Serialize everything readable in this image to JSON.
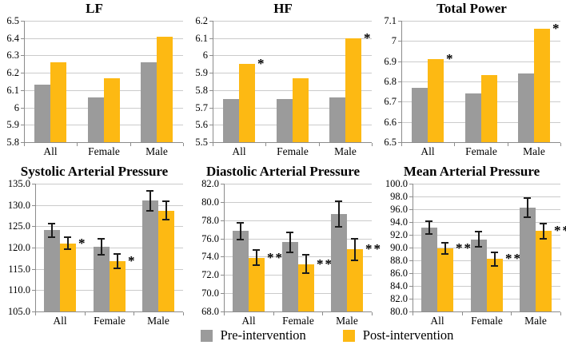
{
  "figure": {
    "background": "#ffffff"
  },
  "colors": {
    "pre_bar": "#9b9b9b",
    "post_bar": "#fdb913",
    "gridline": "#cbcbcb",
    "axis": "#8c8c8c",
    "error_bar": "#1c1c1c",
    "text": "#000000"
  },
  "legend": {
    "items": [
      {
        "label": "Pre-intervention",
        "color": "#9b9b9b"
      },
      {
        "label": "Post-intervention",
        "color": "#fdb913"
      }
    ]
  },
  "chart_data": [
    {
      "type": "bar",
      "title": "LF",
      "categories": [
        "All",
        "Female",
        "Male"
      ],
      "yticks": [
        "5.8",
        "5.9",
        "6",
        "6.1",
        "6.2",
        "6.3",
        "6.4",
        "6.5"
      ],
      "ylim": [
        5.8,
        6.5
      ],
      "series": [
        {
          "name": "Pre-intervention",
          "values": [
            6.13,
            6.06,
            6.26
          ]
        },
        {
          "name": "Post-intervention",
          "values": [
            6.26,
            6.17,
            6.41
          ]
        }
      ],
      "significance": [
        "",
        "",
        ""
      ]
    },
    {
      "type": "bar",
      "title": "HF",
      "categories": [
        "All",
        "Female",
        "Male"
      ],
      "yticks": [
        "5.5",
        "5.6",
        "5.7",
        "5.8",
        "5.9",
        "6",
        "6.1",
        "6.2"
      ],
      "ylim": [
        5.5,
        6.2
      ],
      "series": [
        {
          "name": "Pre-intervention",
          "values": [
            5.75,
            5.75,
            5.76
          ]
        },
        {
          "name": "Post-intervention",
          "values": [
            5.95,
            5.87,
            6.1
          ]
        }
      ],
      "significance": [
        "*",
        "",
        "*"
      ]
    },
    {
      "type": "bar",
      "title": "Total Power",
      "categories": [
        "All",
        "Female",
        "Male"
      ],
      "yticks": [
        "6.5",
        "6.6",
        "6.7",
        "6.8",
        "6.9",
        "7",
        "7.1"
      ],
      "ylim": [
        6.5,
        7.1
      ],
      "series": [
        {
          "name": "Pre-intervention",
          "values": [
            6.77,
            6.74,
            6.84
          ]
        },
        {
          "name": "Post-intervention",
          "values": [
            6.91,
            6.83,
            7.06
          ]
        }
      ],
      "significance": [
        "*",
        "",
        "*"
      ]
    },
    {
      "type": "bar",
      "title": "Systolic Arterial Pressure",
      "categories": [
        "All",
        "Female",
        "Male"
      ],
      "yticks": [
        "105.0",
        "110.0",
        "115.0",
        "120.0",
        "125.0",
        "130.0",
        "135.0"
      ],
      "ylim": [
        105,
        135
      ],
      "series": [
        {
          "name": "Pre-intervention",
          "values": [
            124.1,
            120.2,
            131.0
          ],
          "errors": [
            1.6,
            1.8,
            2.4
          ]
        },
        {
          "name": "Post-intervention",
          "values": [
            121.0,
            116.8,
            128.7
          ],
          "errors": [
            1.4,
            1.7,
            2.2
          ]
        }
      ],
      "significance": [
        "*",
        "*",
        ""
      ]
    },
    {
      "type": "bar",
      "title": "Diastolic Arterial Pressure",
      "categories": [
        "All",
        "Female",
        "Male"
      ],
      "yticks": [
        "68.0",
        "70.0",
        "72.0",
        "74.0",
        "76.0",
        "78.0",
        "80.0",
        "82.0"
      ],
      "ylim": [
        68,
        82
      ],
      "series": [
        {
          "name": "Pre-intervention",
          "values": [
            76.8,
            75.6,
            78.7
          ],
          "errors": [
            0.9,
            1.1,
            1.4
          ]
        },
        {
          "name": "Post-intervention",
          "values": [
            73.9,
            73.2,
            74.8
          ],
          "errors": [
            0.8,
            1.0,
            1.2
          ]
        }
      ],
      "significance": [
        "**",
        "**",
        "**"
      ]
    },
    {
      "type": "bar",
      "title": "Mean Arterial Pressure",
      "categories": [
        "All",
        "Female",
        "Male"
      ],
      "yticks": [
        "80.0",
        "82.0",
        "84.0",
        "86.0",
        "88.0",
        "90.0",
        "92.0",
        "94.0",
        "96.0",
        "98.0",
        "100.0"
      ],
      "ylim": [
        80,
        100
      ],
      "series": [
        {
          "name": "Pre-intervention",
          "values": [
            93.1,
            91.3,
            96.3
          ],
          "errors": [
            1.0,
            1.2,
            1.5
          ]
        },
        {
          "name": "Post-intervention",
          "values": [
            89.9,
            88.2,
            92.6
          ],
          "errors": [
            0.9,
            1.1,
            1.2
          ]
        }
      ],
      "significance": [
        "**",
        "**",
        "**"
      ]
    }
  ]
}
